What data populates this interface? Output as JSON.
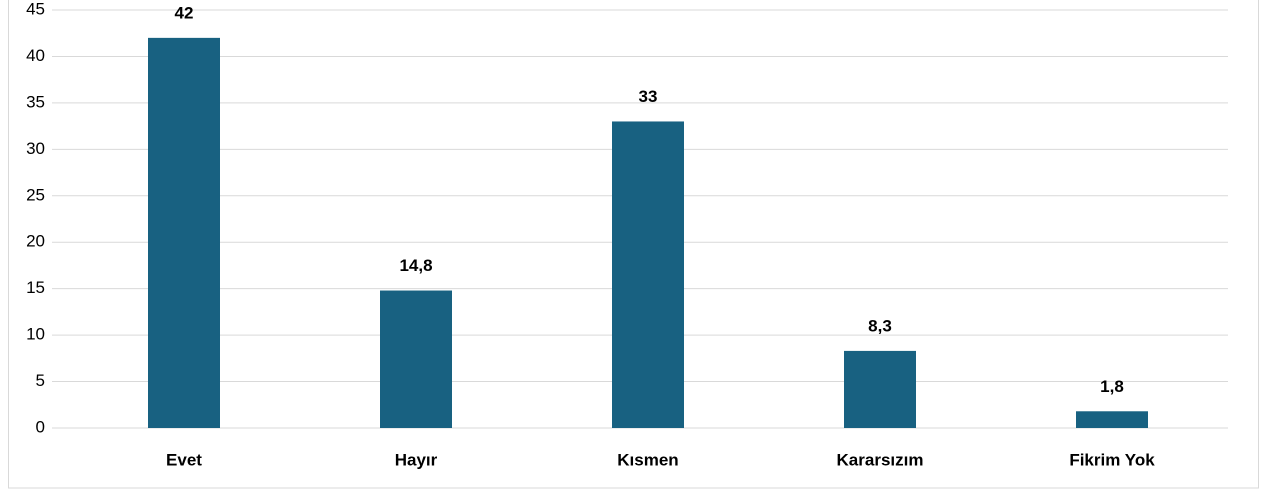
{
  "chart_data": {
    "type": "bar",
    "categories": [
      "Evet",
      "Hayır",
      "Kısmen",
      "Kararsızım",
      "Fikrim Yok"
    ],
    "values": [
      42,
      14.8,
      33,
      8.3,
      1.8
    ],
    "value_labels": [
      "42",
      "14,8",
      "33",
      "8,3",
      "1,8"
    ],
    "color": "#186181",
    "ylim": [
      0,
      45
    ],
    "yticks": [
      0,
      5,
      10,
      15,
      20,
      25,
      30,
      35,
      40,
      45
    ],
    "grid": true
  }
}
